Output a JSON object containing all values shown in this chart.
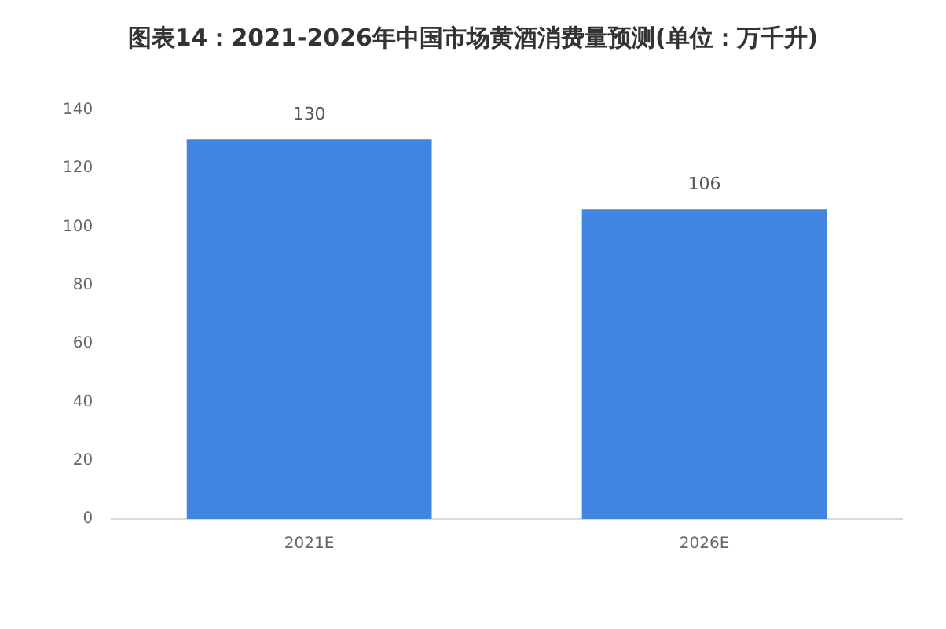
{
  "chart_data": {
    "type": "bar",
    "title": "图表14：2021-2026年中国市场黄酒消费量预测(单位：万千升)",
    "categories": [
      "2021E",
      "2026E"
    ],
    "values": [
      130,
      106
    ],
    "color": "#4285e0",
    "ylim": [
      0,
      140
    ],
    "yticks": [
      0,
      20,
      40,
      60,
      80,
      100,
      120,
      140
    ],
    "grid": false,
    "data_labels": true,
    "legend": false
  }
}
